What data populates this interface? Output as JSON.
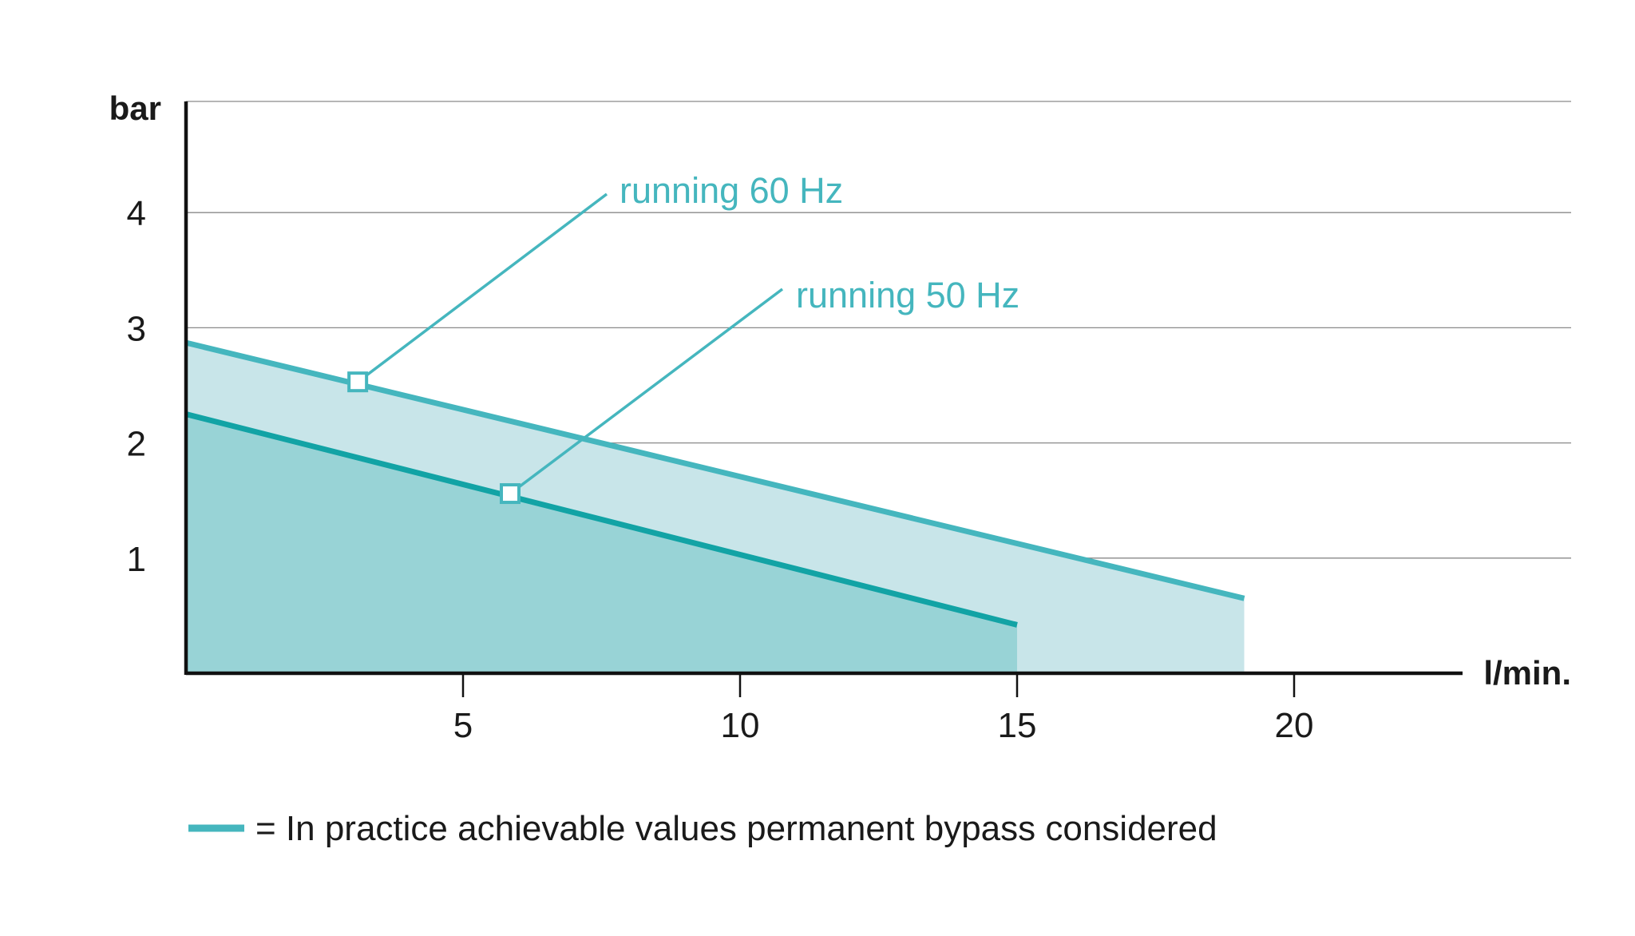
{
  "chart_data": {
    "type": "area",
    "title": "",
    "xlabel": "l/min.",
    "ylabel": "bar",
    "xlim": [
      0,
      23
    ],
    "ylim": [
      0,
      5
    ],
    "xticks": [
      5,
      10,
      15,
      20
    ],
    "yticks": [
      1,
      2,
      3,
      4
    ],
    "grid": "horizontal",
    "series": [
      {
        "x": [
          0,
          19.1
        ],
        "y": [
          2.87,
          0.65
        ],
        "color": "#45b6be",
        "fill": "#c8e5e9"
      },
      {
        "x": [
          0,
          15
        ],
        "y": [
          2.25,
          0.42
        ],
        "color": "#12a3a5",
        "fill": "#98d3d6"
      }
    ],
    "annotations": [
      {
        "label": "running 60 Hz",
        "point": [
          3.1,
          2.53
        ],
        "color": "#45b6be"
      },
      {
        "label": "running 50 Hz",
        "point": [
          5.85,
          1.56
        ],
        "color": "#45b6be"
      }
    ],
    "legend": {
      "text": "= In practice achievable values permanent bypass considered",
      "color": "#45b6be"
    }
  }
}
